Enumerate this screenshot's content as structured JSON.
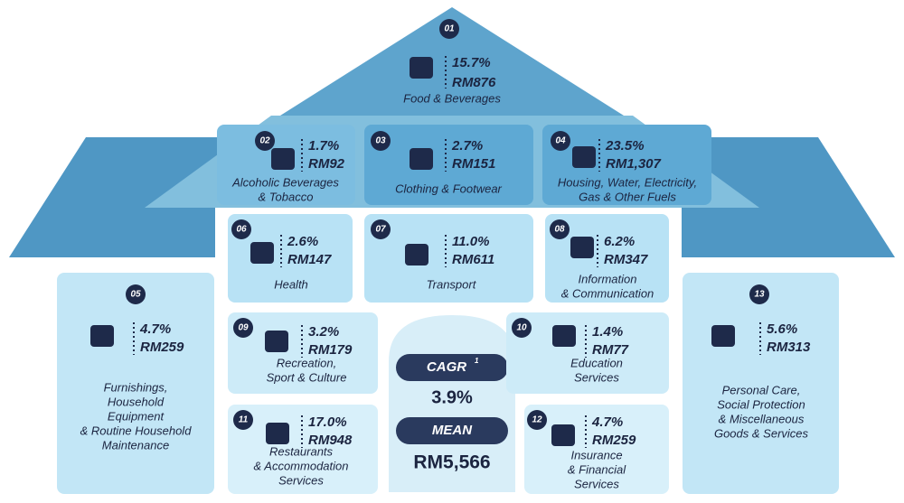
{
  "items": [
    {
      "number": "01",
      "share": "15.7%",
      "amount": "RM876",
      "label": [
        "Food &  Beverages"
      ]
    },
    {
      "number": "02",
      "share": "1.7%",
      "amount": "RM92",
      "label": [
        "Alcoholic Beverages",
        "& Tobacco"
      ]
    },
    {
      "number": "03",
      "share": "2.7%",
      "amount": "RM151",
      "label": [
        "Clothing & Footwear"
      ]
    },
    {
      "number": "04",
      "share": "23.5%",
      "amount": "RM1,307",
      "label": [
        "Housing, Water, Electricity,",
        "Gas & Other Fuels"
      ]
    },
    {
      "number": "05",
      "share": "4.7%",
      "amount": "RM259",
      "label": [
        "Furnishings,",
        "Household",
        "Equipment",
        "& Routine Household",
        "Maintenance"
      ]
    },
    {
      "number": "06",
      "share": "2.6%",
      "amount": "RM147",
      "label": [
        "Health"
      ]
    },
    {
      "number": "07",
      "share": "11.0%",
      "amount": "RM611",
      "label": [
        "Transport"
      ]
    },
    {
      "number": "08",
      "share": "6.2%",
      "amount": "RM347",
      "label": [
        "Information",
        "& Communication"
      ]
    },
    {
      "number": "09",
      "share": "3.2%",
      "amount": "RM179",
      "label": [
        "Recreation,",
        "Sport & Culture"
      ]
    },
    {
      "number": "10",
      "share": "1.4%",
      "amount": "RM77",
      "label": [
        "Education",
        "Services"
      ]
    },
    {
      "number": "11",
      "share": "17.0%",
      "amount": "RM948",
      "label": [
        "Restaurants",
        "& Accommodation",
        "Services"
      ]
    },
    {
      "number": "12",
      "share": "4.7%",
      "amount": "RM259",
      "label": [
        "Insurance",
        "& Financial",
        "Services"
      ]
    },
    {
      "number": "13",
      "share": "5.6%",
      "amount": "RM313",
      "label": [
        "Personal Care,",
        "Social Protection",
        "& Miscellaneous",
        "Goods & Services"
      ]
    }
  ],
  "summary": {
    "cagr_label": "CAGR",
    "cagr_note": "1",
    "cagr_value": "3.9%",
    "mean_label": "MEAN",
    "mean_value": "RM5,566"
  }
}
